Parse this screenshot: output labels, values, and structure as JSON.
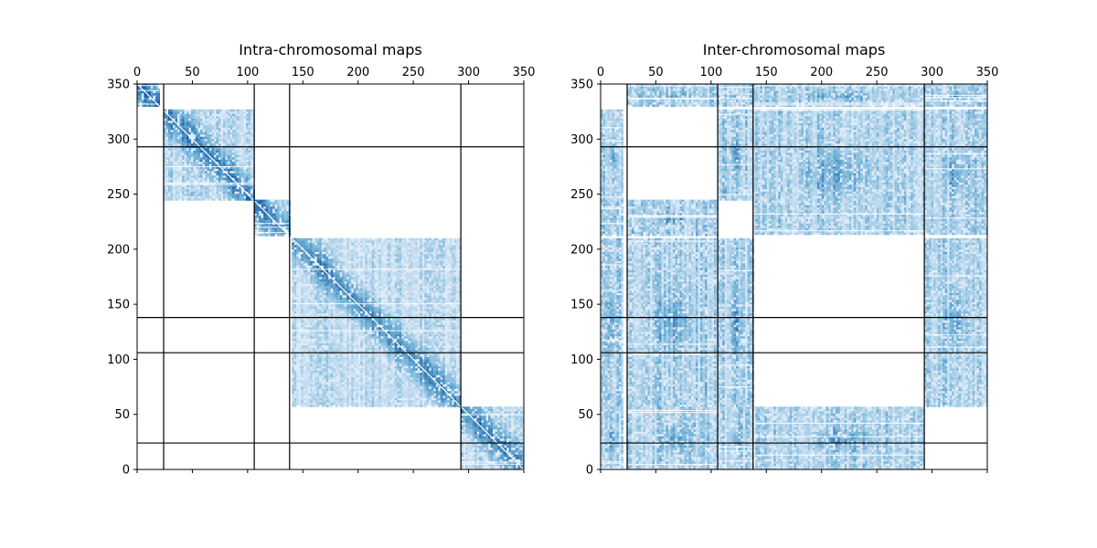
{
  "figure": {
    "background": "#ffffff",
    "colormap": {
      "light": "#deebf7",
      "mid": "#6baed6",
      "dark": "#08519c"
    }
  },
  "chart_data": [
    {
      "type": "heatmap",
      "title": "Intra-chromosomal maps",
      "xlabel": "",
      "ylabel": "",
      "xlim": [
        0,
        350
      ],
      "ylim": [
        0,
        350
      ],
      "xticks": [
        0,
        50,
        100,
        150,
        200,
        250,
        300,
        350
      ],
      "yticks": [
        0,
        50,
        100,
        150,
        200,
        250,
        300,
        350
      ],
      "x_tick_labels_position": "top",
      "chromosome_boundaries": [
        0,
        24,
        106,
        138,
        293,
        350
      ],
      "boundary_lines": {
        "vertical": [
          24,
          106,
          138,
          293
        ],
        "horizontal": [
          24,
          106,
          138,
          293
        ]
      },
      "blocks": [
        {
          "x": [
            0,
            20
          ],
          "y": [
            330,
            350
          ],
          "density": 0.9
        },
        {
          "x": [
            24,
            106
          ],
          "y": [
            245,
            327
          ],
          "density": 0.75
        },
        {
          "x": [
            106,
            138
          ],
          "y": [
            213,
            245
          ],
          "density": 0.85
        },
        {
          "x": [
            140,
            293
          ],
          "y": [
            58,
            210
          ],
          "density": 0.7
        },
        {
          "x": [
            293,
            350
          ],
          "y": [
            0,
            57
          ],
          "density": 0.8
        }
      ],
      "diagonal": true
    },
    {
      "type": "heatmap",
      "title": "Inter-chromosomal maps",
      "xlabel": "",
      "ylabel": "",
      "xlim": [
        0,
        350
      ],
      "ylim": [
        0,
        350
      ],
      "xticks": [
        0,
        50,
        100,
        150,
        200,
        250,
        300,
        350
      ],
      "yticks": [
        0,
        50,
        100,
        150,
        200,
        250,
        300,
        350
      ],
      "x_tick_labels_position": "top",
      "chromosome_boundaries": [
        0,
        24,
        106,
        138,
        293,
        350
      ],
      "boundary_lines": {
        "vertical": [
          24,
          106,
          138,
          293
        ],
        "horizontal": [
          24,
          106,
          138,
          293
        ]
      },
      "blocks": [
        {
          "x": [
            24,
            106
          ],
          "y": [
            330,
            350
          ],
          "density": 0.6
        },
        {
          "x": [
            106,
            138
          ],
          "y": [
            330,
            350
          ],
          "density": 0.6
        },
        {
          "x": [
            138,
            293
          ],
          "y": [
            330,
            350
          ],
          "density": 0.6
        },
        {
          "x": [
            293,
            350
          ],
          "y": [
            330,
            350
          ],
          "density": 0.6
        },
        {
          "x": [
            0,
            20
          ],
          "y": [
            245,
            327
          ],
          "density": 0.6
        },
        {
          "x": [
            106,
            138
          ],
          "y": [
            245,
            327
          ],
          "density": 0.6
        },
        {
          "x": [
            138,
            293
          ],
          "y": [
            213,
            327
          ],
          "density": 0.6
        },
        {
          "x": [
            293,
            350
          ],
          "y": [
            213,
            327
          ],
          "density": 0.6
        },
        {
          "x": [
            0,
            20
          ],
          "y": [
            213,
            245
          ],
          "density": 0.6
        },
        {
          "x": [
            24,
            106
          ],
          "y": [
            213,
            245
          ],
          "density": 0.6
        },
        {
          "x": [
            0,
            20
          ],
          "y": [
            58,
            210
          ],
          "density": 0.6
        },
        {
          "x": [
            24,
            106
          ],
          "y": [
            58,
            210
          ],
          "density": 0.6
        },
        {
          "x": [
            106,
            138
          ],
          "y": [
            58,
            210
          ],
          "density": 0.6
        },
        {
          "x": [
            293,
            350
          ],
          "y": [
            58,
            210
          ],
          "density": 0.6
        },
        {
          "x": [
            0,
            20
          ],
          "y": [
            0,
            57
          ],
          "density": 0.6
        },
        {
          "x": [
            24,
            106
          ],
          "y": [
            0,
            57
          ],
          "density": 0.6
        },
        {
          "x": [
            106,
            138
          ],
          "y": [
            0,
            57
          ],
          "density": 0.6
        },
        {
          "x": [
            140,
            293
          ],
          "y": [
            0,
            57
          ],
          "density": 0.6
        }
      ],
      "diagonal": false
    }
  ]
}
